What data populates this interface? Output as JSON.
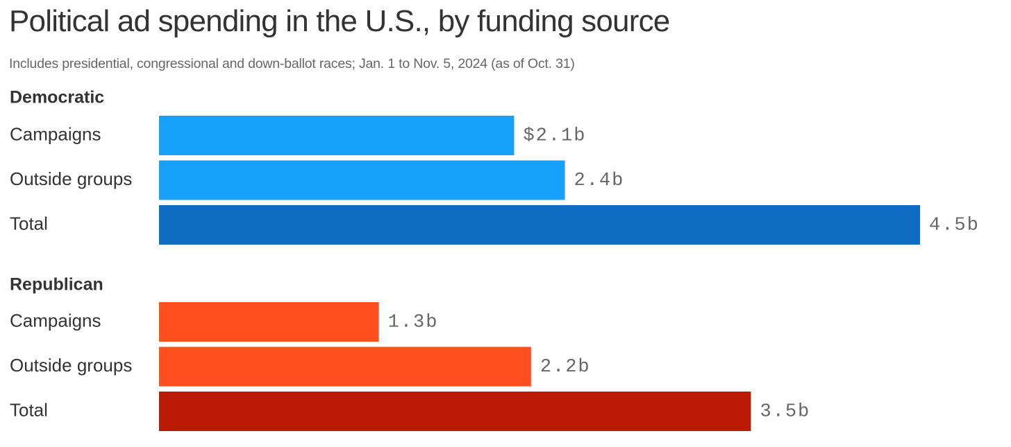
{
  "header": {
    "title": "Political ad spending in the U.S., by funding source",
    "subtitle": "Includes presidential, congressional and down-ballot races; Jan. 1 to Nov. 5, 2024 (as of Oct. 31)"
  },
  "chart_data": {
    "type": "bar",
    "orientation": "horizontal",
    "title": "Political ad spending in the U.S., by funding source",
    "subtitle": "Includes presidential, congressional and down-ballot races; Jan. 1 to Nov. 5, 2024 (as of Oct. 31)",
    "unit": "billions of USD",
    "xlim": [
      0,
      4.5
    ],
    "grid": false,
    "legend": "none",
    "groups": [
      {
        "name": "Democratic",
        "bars": [
          {
            "label": "Campaigns",
            "value": 2.1,
            "value_label": "$2.1b",
            "color": "#17a0f9"
          },
          {
            "label": "Outside groups",
            "value": 2.4,
            "value_label": "2.4b",
            "color": "#17a0f9"
          },
          {
            "label": "Total",
            "value": 4.5,
            "value_label": "4.5b",
            "color": "#0d6bc2"
          }
        ]
      },
      {
        "name": "Republican",
        "bars": [
          {
            "label": "Campaigns",
            "value": 1.3,
            "value_label": "1.3b",
            "color": "#ff4f1f"
          },
          {
            "label": "Outside groups",
            "value": 2.2,
            "value_label": "2.2b",
            "color": "#ff4f1f"
          },
          {
            "label": "Total",
            "value": 3.5,
            "value_label": "3.5b",
            "color": "#bb1a05"
          }
        ]
      }
    ]
  }
}
